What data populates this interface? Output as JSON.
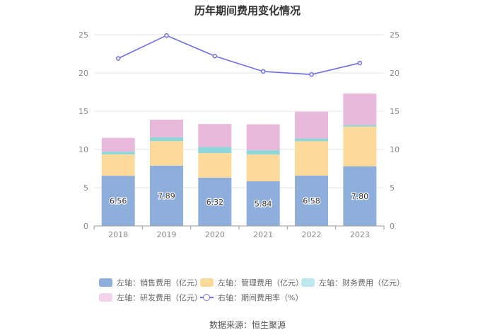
{
  "chart_data": {
    "type": "bar",
    "title": "历年期间费用变化情况",
    "categories": [
      "2018",
      "2019",
      "2020",
      "2021",
      "2022",
      "2023"
    ],
    "stacked": true,
    "left_axis": {
      "min": 0,
      "max": 25,
      "ticks": [
        "0",
        "5",
        "10",
        "15",
        "20",
        "25"
      ]
    },
    "right_axis": {
      "min": 0,
      "max": 25,
      "ticks": [
        "0",
        "5",
        "10",
        "15",
        "20",
        "25"
      ]
    },
    "series": [
      {
        "name": "左轴：销售费用（亿元）",
        "axis": "left",
        "type": "bar",
        "color": "#8eaedb",
        "values": [
          6.56,
          7.89,
          6.32,
          5.84,
          6.58,
          7.8
        ],
        "labels": [
          "6.56",
          "7.89",
          "6.32",
          "5.84",
          "6.58",
          "7.80"
        ]
      },
      {
        "name": "左轴：管理费用（亿元）",
        "axis": "left",
        "type": "bar",
        "color": "#fdd99a",
        "values": [
          2.8,
          3.2,
          3.2,
          3.5,
          4.5,
          5.2
        ]
      },
      {
        "name": "左轴：财务费用（亿元）",
        "axis": "left",
        "type": "bar",
        "color": "#8dd6d9",
        "values": [
          0.35,
          0.5,
          0.8,
          0.55,
          0.35,
          0.2
        ]
      },
      {
        "name": "左轴：研发费用（亿元）",
        "axis": "left",
        "type": "bar",
        "color": "#e9b9dc",
        "values": [
          1.8,
          2.3,
          3.0,
          3.4,
          3.5,
          4.1
        ]
      },
      {
        "name": "右轴：期间费用率（%）",
        "axis": "right",
        "type": "line",
        "color": "#6e6ee6",
        "values": [
          21.9,
          24.9,
          22.2,
          20.2,
          19.8,
          21.3
        ]
      }
    ],
    "legend_position": "bottom",
    "grid": true
  },
  "source": "数据来源：恒生聚源"
}
